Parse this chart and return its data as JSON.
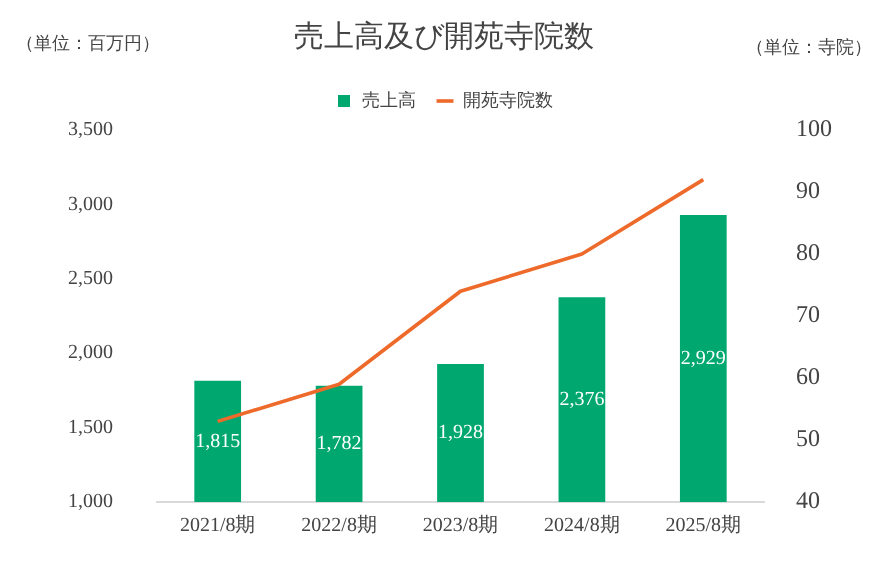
{
  "chart_data": {
    "type": "bar",
    "title": "売上高及び開苑寺院数",
    "ylabel": "（単位：百万円）",
    "y2label": "（単位：寺院）",
    "categories": [
      "2021/8期",
      "2022/8期",
      "2023/8期",
      "2024/8期",
      "2025/8期"
    ],
    "series": [
      {
        "name": "売上高",
        "color": "#00a870",
        "values": [
          1815,
          1782,
          1928,
          2376,
          2929
        ],
        "value_labels": [
          "1,815",
          "1,782",
          "1,928",
          "2,376",
          "2,929"
        ]
      },
      {
        "name": "開苑寺院数",
        "type": "line",
        "axis": "y2",
        "color": "#ee6a2a",
        "values": [
          53,
          59,
          74,
          80,
          92
        ],
        "marker": "none"
      }
    ],
    "ylim": [
      1000,
      3500
    ],
    "yticks": [
      {
        "value": 1000,
        "label": "1,000"
      },
      {
        "value": 1500,
        "label": "1,500"
      },
      {
        "value": 2000,
        "label": "2,000"
      },
      {
        "value": 2500,
        "label": "2,500"
      },
      {
        "value": 3000,
        "label": "3,000"
      },
      {
        "value": 3500,
        "label": "3,500"
      }
    ],
    "y2lim": [
      40,
      100
    ],
    "y2ticks": [
      40,
      50,
      60,
      70,
      80,
      90,
      100
    ],
    "grid": false,
    "legend": "top"
  }
}
